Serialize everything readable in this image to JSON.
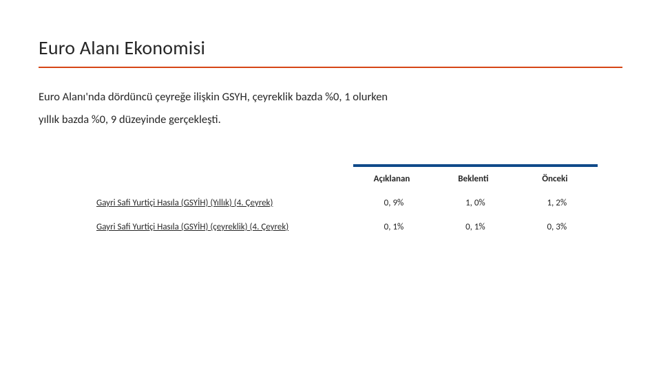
{
  "title": "Euro Alanı Ekonomisi",
  "accent_color": "#d64514",
  "header_bar_color": "#104a8a",
  "body_text": "Euro Alanı'nda dördüncü çeyreğe ilişkin GSYH, çeyreklik bazda %0, 1 olurken yıllık bazda %0, 9 düzeyinde gerçekleşti.",
  "table": {
    "columns": [
      "",
      "Açıklanan",
      "Beklenti",
      "Önceki"
    ],
    "rows": [
      {
        "label": "Gayri Safi Yurtiçi Hasıla (GSYİH) (Yıllık) (4. Çeyrek)",
        "values": [
          "0, 9%",
          "1, 0%",
          "1, 2%"
        ]
      },
      {
        "label": "Gayri Safi Yurtiçi Hasıla (GSYİH) (çeyreklik) (4. Çeyrek)",
        "values": [
          "0, 1%",
          "0, 1%",
          "0, 3%"
        ]
      }
    ]
  }
}
